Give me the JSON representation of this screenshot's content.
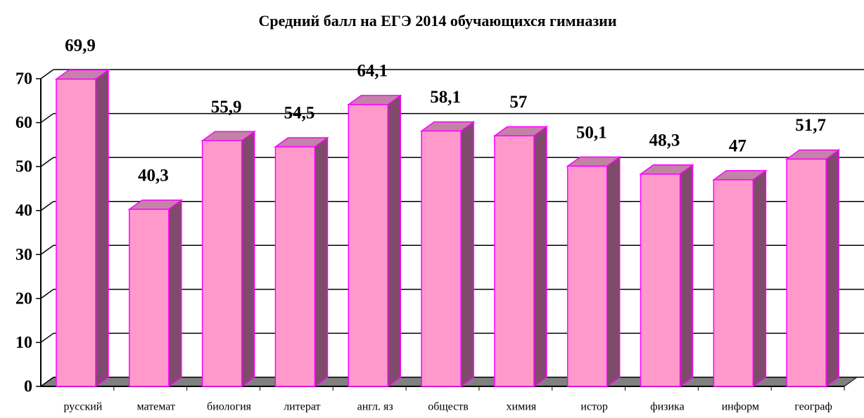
{
  "chart_data": {
    "type": "bar3d",
    "title": "Средний балл на ЕГЭ 2014 обучающихся гимназии",
    "categories": [
      "русский",
      "математ",
      "биология",
      "литерат",
      "англ. яз",
      "обществ",
      "химия",
      "истор",
      "физика",
      "информ",
      "географ"
    ],
    "values": [
      69.9,
      40.3,
      55.9,
      54.5,
      64.1,
      58.1,
      57,
      50.1,
      48.3,
      47,
      51.7
    ],
    "value_labels": [
      "69,9",
      "40,3",
      "55,9",
      "54,5",
      "64,1",
      "58,1",
      "57",
      "50,1",
      "48,3",
      "47",
      "51,7"
    ],
    "color": "#ff99cc",
    "ylim": [
      0,
      70
    ],
    "yticks": [
      0,
      10,
      20,
      30,
      40,
      50,
      60,
      70
    ],
    "grid": true
  }
}
